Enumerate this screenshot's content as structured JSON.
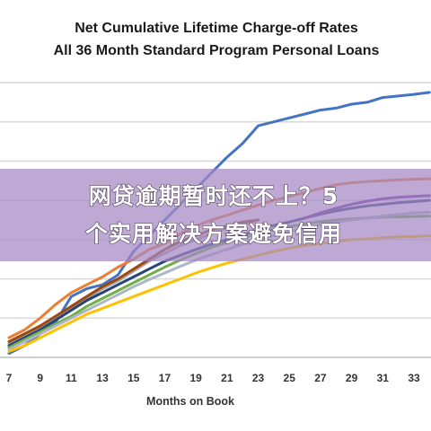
{
  "chart_data": {
    "type": "line",
    "title": [
      "Net Cumulative Lifetime Charge-off Rates",
      "All 36 Month Standard Program Personal Loans"
    ],
    "xlabel": "Months on Book",
    "ylabel": "",
    "xlim": [
      7,
      34
    ],
    "ylim": [
      0,
      7
    ],
    "x_ticks": [
      "7",
      "9",
      "11",
      "13",
      "15",
      "17",
      "19",
      "21",
      "23",
      "25",
      "27",
      "29",
      "31",
      "33"
    ],
    "grid": "horizontal",
    "series": [
      {
        "color": "#4472c4",
        "x": [
          7,
          8,
          9,
          10,
          11,
          12,
          13,
          14,
          15,
          16,
          17,
          18,
          19,
          20,
          21,
          22,
          23,
          24,
          25,
          26,
          27,
          28,
          29,
          30,
          31,
          32,
          33,
          34
        ],
        "values": [
          0.1,
          0.3,
          0.6,
          0.9,
          1.55,
          1.75,
          1.85,
          2.1,
          2.7,
          3.1,
          3.5,
          3.9,
          4.3,
          4.7,
          5.1,
          5.45,
          5.9,
          6.0,
          6.1,
          6.2,
          6.3,
          6.35,
          6.45,
          6.5,
          6.62,
          6.66,
          6.7,
          6.75
        ]
      },
      {
        "color": "#ed7d31",
        "x": [
          7,
          8,
          9,
          10,
          11,
          12,
          13,
          14,
          15,
          16,
          17,
          18,
          19,
          20,
          21,
          22,
          23,
          24,
          25,
          26,
          27,
          28,
          29,
          30,
          31,
          32,
          33,
          34
        ],
        "values": [
          0.5,
          0.7,
          1.0,
          1.35,
          1.65,
          1.85,
          2.05,
          2.3,
          2.5,
          2.75,
          2.9,
          3.15,
          3.35,
          3.5,
          3.62,
          3.75,
          3.88,
          4.0,
          4.1,
          4.2,
          4.3,
          4.4,
          4.45,
          4.48,
          4.5,
          4.52,
          4.54,
          4.55
        ]
      },
      {
        "color": "#a5a5a5",
        "x": [
          7,
          8,
          9,
          10,
          11,
          12,
          13,
          14,
          15,
          16,
          17,
          18,
          19,
          20,
          21,
          22,
          23
        ],
        "values": [
          0.35,
          0.55,
          0.75,
          1.0,
          1.25,
          1.5,
          1.75,
          1.95,
          2.2,
          2.45,
          2.65,
          2.85,
          3.0,
          3.15,
          3.3,
          3.4,
          3.5
        ]
      },
      {
        "color": "#9e480e",
        "x": [
          7,
          8,
          9,
          10,
          11,
          12,
          13,
          14,
          15,
          16,
          17,
          18,
          19,
          20,
          21,
          22,
          23
        ],
        "values": [
          0.4,
          0.6,
          0.8,
          1.05,
          1.3,
          1.55,
          1.8,
          2.0,
          2.25,
          2.5,
          2.75,
          2.95,
          3.1,
          3.25,
          3.35,
          3.45,
          3.5
        ]
      },
      {
        "color": "#264478",
        "x": [
          7,
          8,
          9,
          10,
          11,
          12,
          13,
          14,
          15,
          16,
          17,
          18,
          19,
          20,
          21,
          22,
          23,
          24,
          25,
          26,
          27,
          28,
          29,
          30,
          31,
          32,
          33,
          34
        ],
        "values": [
          0.3,
          0.5,
          0.7,
          0.95,
          1.2,
          1.45,
          1.65,
          1.85,
          2.05,
          2.25,
          2.45,
          2.6,
          2.75,
          2.88,
          3.0,
          3.12,
          3.25,
          3.36,
          3.45,
          3.55,
          3.65,
          3.73,
          3.8,
          3.86,
          3.9,
          3.94,
          3.97,
          4.0
        ]
      },
      {
        "color": "#7030a0",
        "x": [
          26,
          27,
          28,
          29,
          30,
          31,
          32,
          33,
          34
        ],
        "values": [
          3.55,
          3.68,
          3.8,
          3.9,
          3.98,
          4.04,
          4.08,
          4.1,
          4.12
        ]
      },
      {
        "color": "#70ad47",
        "x": [
          7,
          8,
          9,
          10,
          11,
          12,
          13,
          14,
          15,
          16,
          17,
          18,
          19,
          20,
          21,
          22,
          23,
          24,
          25,
          26,
          27,
          28,
          29,
          30,
          31,
          32,
          33,
          34
        ],
        "values": [
          0.25,
          0.45,
          0.65,
          0.85,
          1.05,
          1.3,
          1.5,
          1.7,
          1.9,
          2.1,
          2.3,
          2.48,
          2.65,
          2.8,
          2.93,
          3.05,
          3.15,
          3.25,
          3.33,
          3.4,
          3.46,
          3.5,
          3.53,
          3.55,
          3.57,
          3.58,
          3.59,
          3.6
        ]
      },
      {
        "color": "#a9b7c6",
        "x": [
          7,
          8,
          9,
          10,
          11,
          12,
          13,
          14,
          15,
          16,
          17,
          18,
          19,
          20,
          21,
          22,
          23,
          24,
          25,
          26,
          27,
          28,
          29,
          30,
          31,
          32,
          33,
          34
        ],
        "values": [
          0.2,
          0.4,
          0.6,
          0.8,
          1.0,
          1.2,
          1.4,
          1.6,
          1.8,
          1.98,
          2.15,
          2.32,
          2.48,
          2.62,
          2.75,
          2.88,
          3.0,
          3.1,
          3.2,
          3.3,
          3.38,
          3.45,
          3.5,
          3.55,
          3.6,
          3.64,
          3.68,
          3.7
        ]
      },
      {
        "color": "#ffc000",
        "x": [
          7,
          8,
          9,
          10,
          11,
          12,
          13,
          14,
          15,
          16,
          17,
          18,
          19,
          20,
          21,
          22,
          23,
          24,
          25,
          26,
          27,
          28,
          29,
          30,
          31,
          32,
          33,
          34
        ],
        "values": [
          0.15,
          0.3,
          0.5,
          0.7,
          0.9,
          1.1,
          1.25,
          1.4,
          1.55,
          1.7,
          1.85,
          2.0,
          2.15,
          2.28,
          2.4,
          2.5,
          2.6,
          2.7,
          2.78,
          2.85,
          2.9,
          2.95,
          3.0,
          3.02,
          3.05,
          3.07,
          3.08,
          3.1
        ]
      }
    ]
  },
  "overlay": {
    "line1": "网贷逾期暂时还不上？5",
    "line2": "个实用解决方案避免信用",
    "color": "#a388c4"
  }
}
